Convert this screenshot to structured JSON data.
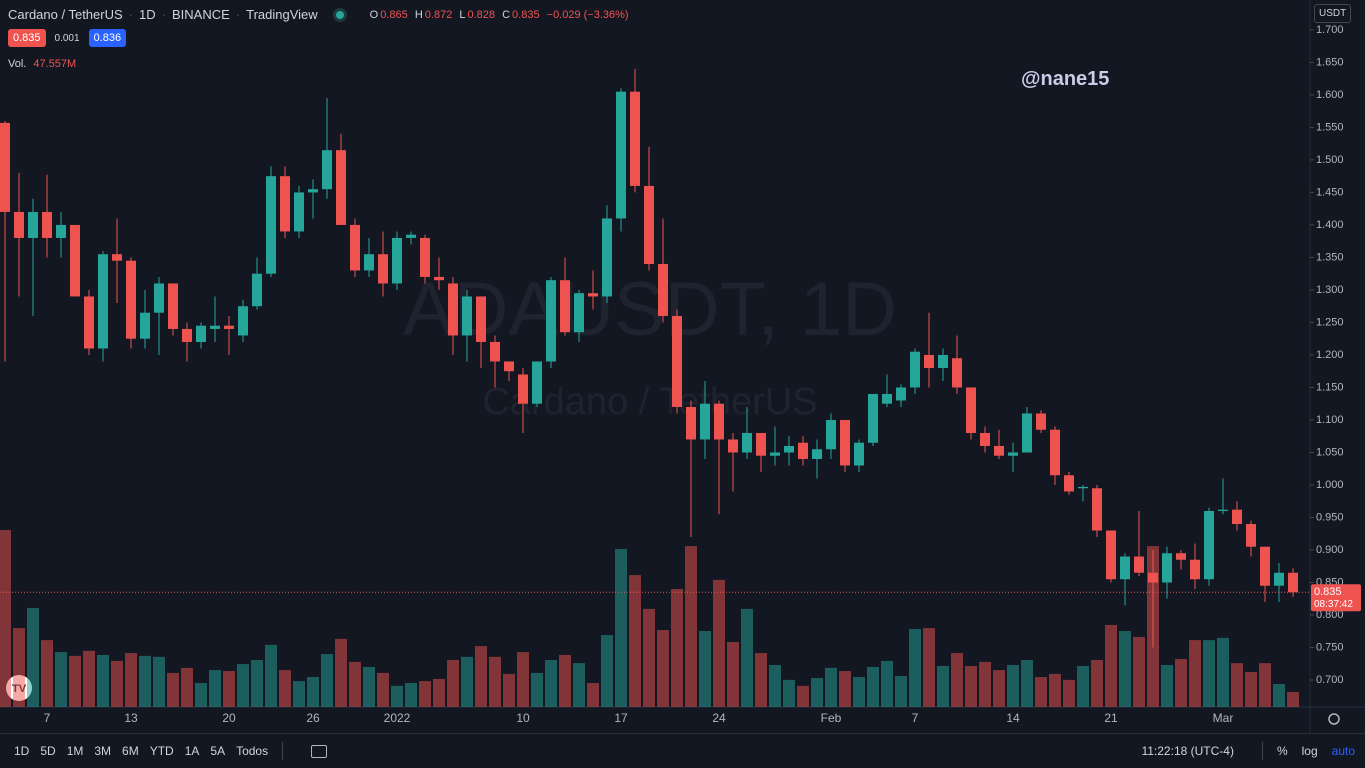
{
  "header": {
    "symbol": "Cardano / TetherUS",
    "interval": "1D",
    "exchange": "BINANCE",
    "source": "TradingView",
    "ohlc_labels": [
      "O",
      "H",
      "L",
      "C"
    ],
    "change_label": "−0.029 (−3.36%)"
  },
  "quote": {
    "bid": 0.835,
    "spread": 0.001,
    "ask": 0.836
  },
  "currency": "USDT",
  "annotation": "@nane15",
  "watermark": {
    "symbol": "ADAUSDT, 1D",
    "name": "Cardano / TetherUS"
  },
  "countdown": "08:37:42",
  "toolbar": {
    "ranges": [
      "1D",
      "5D",
      "1M",
      "3M",
      "6M",
      "YTD",
      "1A",
      "5A",
      "Todos"
    ],
    "time": "11:22:18 (UTC-4)",
    "scale_options": [
      "%",
      "log",
      "auto"
    ]
  },
  "chart_data": {
    "type": "candlestick",
    "categories": [
      null,
      null,
      null,
      "7",
      null,
      null,
      null,
      null,
      null,
      "13",
      null,
      null,
      null,
      null,
      null,
      null,
      "20",
      null,
      null,
      null,
      null,
      null,
      "26",
      null,
      null,
      null,
      null,
      null,
      "2022",
      null,
      null,
      null,
      null,
      null,
      null,
      null,
      null,
      "10",
      null,
      null,
      null,
      null,
      null,
      null,
      "17",
      null,
      null,
      null,
      null,
      null,
      null,
      "24",
      null,
      null,
      null,
      null,
      null,
      null,
      null,
      "Feb",
      null,
      null,
      null,
      null,
      null,
      "7",
      null,
      null,
      null,
      null,
      null,
      null,
      "14",
      null,
      null,
      null,
      null,
      null,
      null,
      "21",
      null,
      null,
      null,
      null,
      null,
      null,
      null,
      "Mar",
      null,
      null,
      null,
      null,
      null
    ],
    "open": [
      1.557,
      1.42,
      1.38,
      1.42,
      1.38,
      1.4,
      1.29,
      1.21,
      1.355,
      1.345,
      1.225,
      1.265,
      1.31,
      1.24,
      1.22,
      1.24,
      1.245,
      1.23,
      1.275,
      1.325,
      1.475,
      1.39,
      1.45,
      1.455,
      1.515,
      1.4,
      1.33,
      1.355,
      1.31,
      1.38,
      1.38,
      1.32,
      1.31,
      1.23,
      1.29,
      1.22,
      1.19,
      1.17,
      1.125,
      1.19,
      1.315,
      1.235,
      1.295,
      1.29,
      1.41,
      1.605,
      1.46,
      1.34,
      1.26,
      1.12,
      1.07,
      1.125,
      1.07,
      1.05,
      1.08,
      1.045,
      1.05,
      1.065,
      1.04,
      1.055,
      1.1,
      1.03,
      1.065,
      1.125,
      1.13,
      1.15,
      1.2,
      1.18,
      1.195,
      1.15,
      1.08,
      1.06,
      1.045,
      1.05,
      1.11,
      1.085,
      1.015,
      0.995,
      0.995,
      0.93,
      0.855,
      0.89,
      0.865,
      0.85,
      0.895,
      0.885,
      0.855,
      0.96,
      0.962,
      0.94,
      0.905,
      0.845,
      0.865
    ],
    "high": [
      1.56,
      1.48,
      1.44,
      1.477,
      1.42,
      1.4,
      1.3,
      1.36,
      1.41,
      1.35,
      1.3,
      1.32,
      1.31,
      1.25,
      1.25,
      1.29,
      1.26,
      1.285,
      1.35,
      1.49,
      1.49,
      1.46,
      1.47,
      1.595,
      1.54,
      1.41,
      1.38,
      1.39,
      1.39,
      1.39,
      1.385,
      1.35,
      1.32,
      1.3,
      1.29,
      1.23,
      1.19,
      1.18,
      1.19,
      1.32,
      1.35,
      1.3,
      1.33,
      1.43,
      1.61,
      1.64,
      1.52,
      1.41,
      1.27,
      1.13,
      1.16,
      1.13,
      1.08,
      1.12,
      1.08,
      1.09,
      1.075,
      1.075,
      1.07,
      1.11,
      1.1,
      1.07,
      1.14,
      1.17,
      1.155,
      1.21,
      1.265,
      1.21,
      1.23,
      1.15,
      1.09,
      1.085,
      1.065,
      1.12,
      1.115,
      1.09,
      1.02,
      1.0,
      1.0,
      0.93,
      0.895,
      0.96,
      0.9,
      0.905,
      0.9,
      0.91,
      0.965,
      1.01,
      0.975,
      0.945,
      0.905,
      0.88,
      0.872
    ],
    "low": [
      1.19,
      1.29,
      1.26,
      1.35,
      1.35,
      1.29,
      1.2,
      1.19,
      1.28,
      1.21,
      1.21,
      1.2,
      1.23,
      1.19,
      1.21,
      1.22,
      1.2,
      1.22,
      1.27,
      1.32,
      1.38,
      1.38,
      1.41,
      1.44,
      1.4,
      1.32,
      1.32,
      1.29,
      1.3,
      1.37,
      1.31,
      1.3,
      1.2,
      1.19,
      1.18,
      1.15,
      1.16,
      1.08,
      1.12,
      1.18,
      1.23,
      1.22,
      1.27,
      1.28,
      1.39,
      1.45,
      1.33,
      1.25,
      1.11,
      0.92,
      1.04,
      0.955,
      0.99,
      1.04,
      1.02,
      1.03,
      1.03,
      1.03,
      1.01,
      1.04,
      1.02,
      1.02,
      1.06,
      1.12,
      1.12,
      1.14,
      1.15,
      1.16,
      1.14,
      1.07,
      1.05,
      1.04,
      1.02,
      1.05,
      1.08,
      1.0,
      0.985,
      0.975,
      0.92,
      0.85,
      0.815,
      0.86,
      0.75,
      0.825,
      0.87,
      0.84,
      0.845,
      0.955,
      0.93,
      0.89,
      0.82,
      0.82,
      0.828
    ],
    "close": [
      1.42,
      1.38,
      1.42,
      1.38,
      1.4,
      1.29,
      1.21,
      1.355,
      1.345,
      1.225,
      1.265,
      1.31,
      1.24,
      1.22,
      1.245,
      1.245,
      1.24,
      1.275,
      1.325,
      1.475,
      1.39,
      1.45,
      1.455,
      1.515,
      1.4,
      1.33,
      1.355,
      1.31,
      1.38,
      1.385,
      1.32,
      1.315,
      1.23,
      1.29,
      1.22,
      1.19,
      1.175,
      1.125,
      1.19,
      1.315,
      1.235,
      1.295,
      1.29,
      1.41,
      1.605,
      1.46,
      1.34,
      1.26,
      1.12,
      1.07,
      1.125,
      1.07,
      1.05,
      1.08,
      1.045,
      1.05,
      1.06,
      1.04,
      1.055,
      1.1,
      1.03,
      1.065,
      1.14,
      1.14,
      1.15,
      1.205,
      1.18,
      1.2,
      1.15,
      1.08,
      1.06,
      1.045,
      1.05,
      1.11,
      1.085,
      1.015,
      0.99,
      0.997,
      0.93,
      0.855,
      0.89,
      0.865,
      0.85,
      0.895,
      0.885,
      0.855,
      0.96,
      0.962,
      0.94,
      0.905,
      0.845,
      0.865,
      0.835
    ],
    "volume": {
      "name": "Vol.",
      "last_value_label": "47.557M",
      "values": [
        561,
        250,
        314,
        212,
        174,
        162,
        178,
        165,
        146,
        171,
        162,
        159,
        108,
        124,
        76,
        117,
        114,
        136,
        149,
        197,
        117,
        82,
        95,
        168,
        216,
        143,
        127,
        108,
        67,
        76,
        82,
        89,
        149,
        159,
        193,
        159,
        105,
        174,
        108,
        149,
        165,
        139,
        76,
        228,
        501,
        418,
        311,
        244,
        374,
        510,
        241,
        403,
        206,
        311,
        171,
        133,
        86,
        67,
        92,
        124,
        114,
        95,
        127,
        146,
        98,
        247,
        250,
        130,
        171,
        130,
        143,
        117,
        133,
        149,
        95,
        105,
        86,
        130,
        149,
        260,
        241,
        222,
        510,
        133,
        152,
        212,
        212,
        219,
        139,
        111,
        139,
        73,
        47.557
      ]
    },
    "up_color": "#26a69a",
    "down_color": "#ef5350",
    "ylim": [
      0.6585,
      1.746
    ],
    "yticks": [
      {
        "value": 1.7,
        "label": "1.700"
      },
      {
        "value": 1.65,
        "label": "1.650"
      },
      {
        "value": 1.6,
        "label": "1.600"
      },
      {
        "value": 1.55,
        "label": "1.550"
      },
      {
        "value": 1.5,
        "label": "1.500"
      },
      {
        "value": 1.45,
        "label": "1.450"
      },
      {
        "value": 1.4,
        "label": "1.400"
      },
      {
        "value": 1.35,
        "label": "1.350"
      },
      {
        "value": 1.3,
        "label": "1.300"
      },
      {
        "value": 1.25,
        "label": "1.250"
      },
      {
        "value": 1.2,
        "label": "1.200"
      },
      {
        "value": 1.15,
        "label": "1.150"
      },
      {
        "value": 1.1,
        "label": "1.100"
      },
      {
        "value": 1.05,
        "label": "1.050"
      },
      {
        "value": 1.0,
        "label": "1.000"
      },
      {
        "value": 0.95,
        "label": "0.950"
      },
      {
        "value": 0.9,
        "label": "0.900"
      },
      {
        "value": 0.85,
        "label": "0.850"
      },
      {
        "value": 0.8,
        "label": "0.800"
      },
      {
        "value": 0.75,
        "label": "0.750"
      },
      {
        "value": 0.7,
        "label": "0.700"
      }
    ],
    "grid": false
  }
}
